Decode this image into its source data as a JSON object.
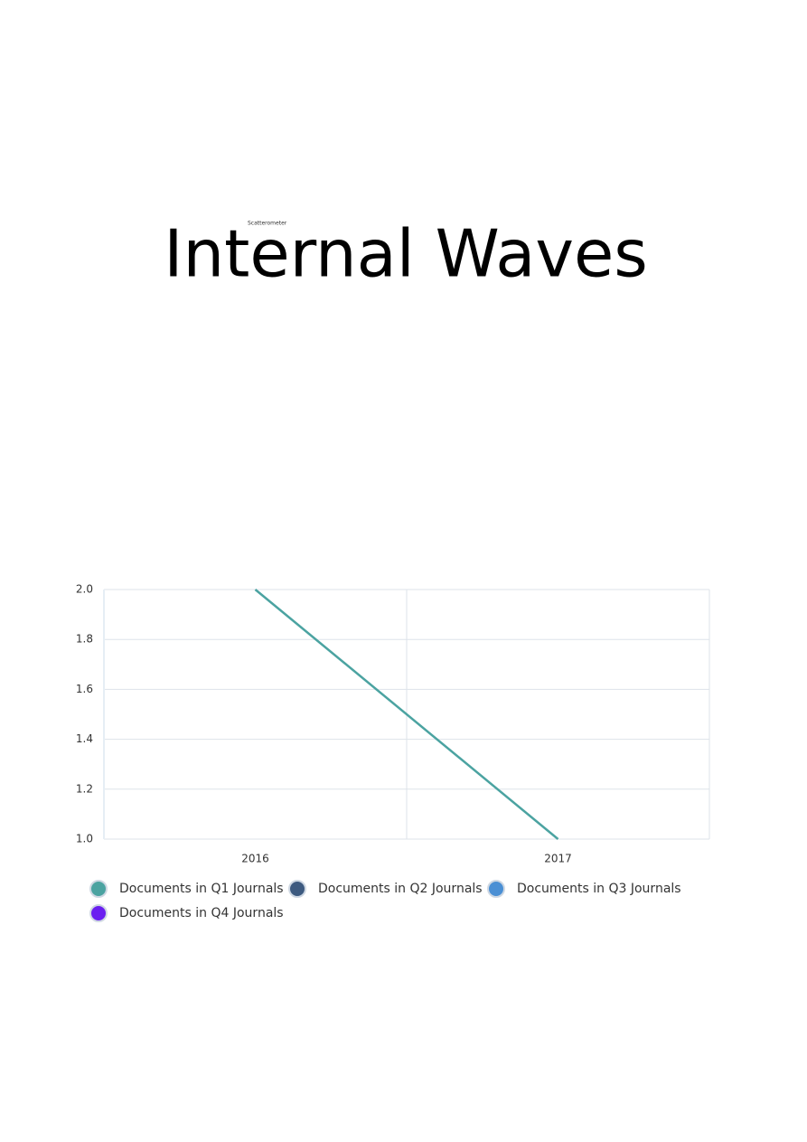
{
  "subtitle": "Scatterometer",
  "title": "Internal Waves",
  "chart_data": {
    "type": "line",
    "categories": [
      "2016",
      "2017"
    ],
    "series": [
      {
        "name": "Documents in Q1 Journals",
        "color": "#4ba3a1",
        "values": [
          2,
          1
        ]
      },
      {
        "name": "Documents in Q2 Journals",
        "color": "#3d5a80",
        "values": [
          null,
          null
        ]
      },
      {
        "name": "Documents in Q3 Journals",
        "color": "#4a8fd4",
        "values": [
          null,
          null
        ]
      },
      {
        "name": "Documents in Q4 Journals",
        "color": "#6a1ff0",
        "values": [
          null,
          null
        ]
      }
    ],
    "ylim": [
      1,
      2
    ],
    "yticks": [
      {
        "value": 1,
        "label": "1.0"
      },
      1.2,
      1.4,
      1.6,
      1.8,
      {
        "value": 2,
        "label": "2.0"
      }
    ],
    "grid": true
  }
}
